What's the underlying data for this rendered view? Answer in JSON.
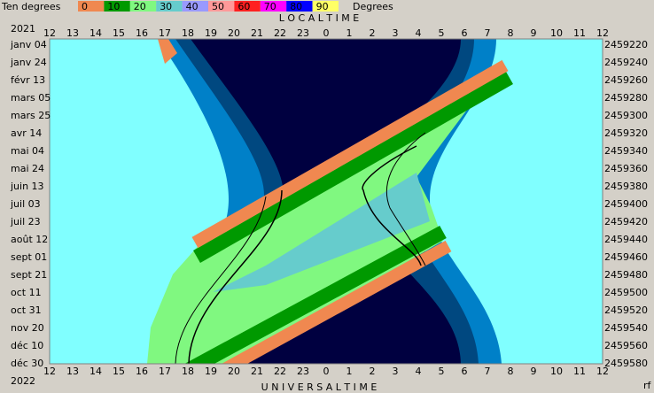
{
  "legend": {
    "title": "Ten degrees",
    "labels": [
      "0",
      "10",
      "20",
      "30",
      "40",
      "50",
      "60",
      "70",
      "80",
      "90"
    ],
    "colors": [
      "#f08850",
      "#009900",
      "#80f880",
      "#66cccc",
      "#9999ff",
      "#ff9999",
      "#ff2020",
      "#ff00ff",
      "#0000ff",
      "#ffff66"
    ],
    "unit": "Degrees"
  },
  "top_axis": {
    "title": "L O C A L     T I M E",
    "ticks": [
      "12",
      "13",
      "14",
      "15",
      "16",
      "17",
      "18",
      "19",
      "20",
      "21",
      "22",
      "23",
      "0",
      "1",
      "2",
      "3",
      "4",
      "5",
      "6",
      "7",
      "8",
      "9",
      "10",
      "11",
      "12"
    ]
  },
  "bottom_axis": {
    "title": "U N I V E R S A L     T I M E",
    "ticks": [
      "12",
      "13",
      "14",
      "15",
      "16",
      "17",
      "18",
      "19",
      "20",
      "21",
      "22",
      "23",
      "0",
      "1",
      "2",
      "3",
      "4",
      "5",
      "6",
      "7",
      "8",
      "9",
      "10",
      "11",
      "12"
    ]
  },
  "left_axis": {
    "year_top": "2021",
    "year_bottom": "2022",
    "dates": [
      "janv 04",
      "janv 24",
      "févr 13",
      "mars 05",
      "mars 25",
      "avr 14",
      "mai 04",
      "mai 24",
      "juin 13",
      "juil 03",
      "juil 23",
      "août 12",
      "sept 01",
      "sept 21",
      "oct 11",
      "oct 31",
      "nov 20",
      "déc 10",
      "déc 30"
    ]
  },
  "right_axis": {
    "values": [
      "2459220",
      "2459240",
      "2459260",
      "2459280",
      "2459300",
      "2459320",
      "2459340",
      "2459360",
      "2459380",
      "2459400",
      "2459420",
      "2459440",
      "2459460",
      "2459480",
      "2459500",
      "2459520",
      "2459540",
      "2459560",
      "2459580"
    ]
  },
  "corner_label": "rf"
}
